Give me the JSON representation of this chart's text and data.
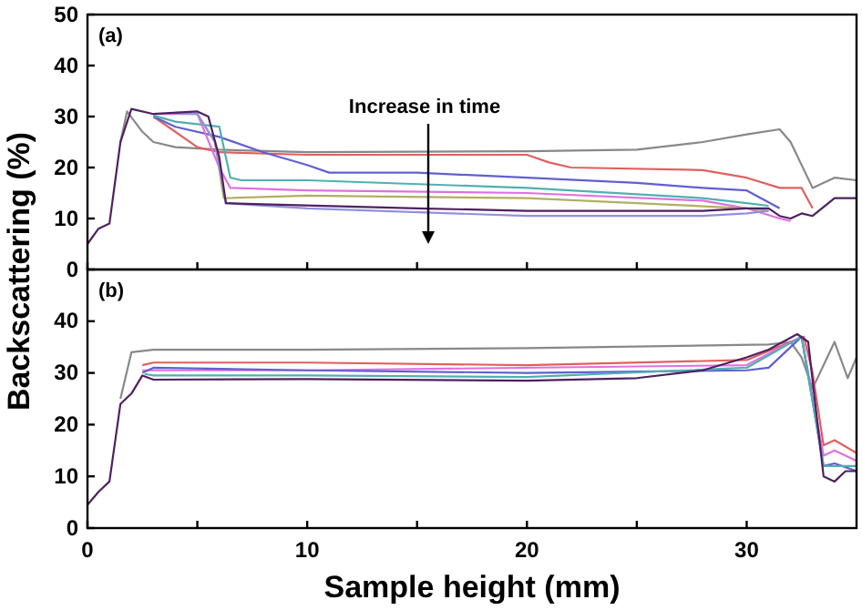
{
  "chart_data": [
    {
      "type": "line",
      "ylabel": "Backscattering (%)",
      "annotations": [
        "(a)",
        "Increase in time"
      ],
      "xlim": [
        0,
        35
      ],
      "xticks": [
        0,
        {
          "value": 5,
          "label": null
        },
        10,
        {
          "value": 15,
          "label": null
        },
        20,
        {
          "value": 25,
          "label": null
        },
        30
      ],
      "ylim": [
        0,
        50
      ],
      "yticks": [
        0,
        10,
        20,
        30,
        40,
        50
      ],
      "tick_labels": "y",
      "series": [
        {
          "color": "#888888",
          "x": [
            1.5,
            1.8,
            2.5,
            3,
            4,
            6,
            10,
            20,
            25,
            28,
            30,
            31.5,
            32,
            33,
            33.5,
            34,
            35
          ],
          "values": [
            25,
            31,
            27,
            25,
            24,
            23.5,
            23,
            23.2,
            23.5,
            25,
            26.5,
            27.5,
            25,
            16,
            17,
            18,
            17.5
          ]
        },
        {
          "color": "#e06060",
          "x": [
            3,
            5,
            6,
            10,
            15,
            20,
            21,
            22,
            28,
            30,
            31.5,
            32.5,
            33
          ],
          "values": [
            30,
            24,
            23,
            22.5,
            22.5,
            22.5,
            21,
            20,
            19.5,
            18,
            16,
            16,
            12
          ]
        },
        {
          "color": "#6060d0",
          "x": [
            3,
            4,
            6,
            8,
            10,
            11,
            15,
            20,
            25,
            28,
            30,
            31.5
          ],
          "values": [
            30,
            28,
            26,
            23,
            20.5,
            19,
            19,
            18,
            17,
            16,
            15.5,
            12
          ]
        },
        {
          "color": "#50b0b0",
          "x": [
            3,
            4,
            6,
            6.5,
            7,
            10,
            20,
            28,
            30,
            31
          ],
          "values": [
            30.2,
            29,
            28,
            18,
            17.5,
            17.5,
            16,
            14,
            13,
            12.5
          ]
        },
        {
          "color": "#e070e0",
          "x": [
            3,
            5,
            6,
            6.5,
            10,
            20,
            28,
            30,
            31.5,
            32
          ],
          "values": [
            30.5,
            30.5,
            20,
            16,
            15.5,
            15,
            13.5,
            12,
            10,
            9.5
          ]
        },
        {
          "color": "#b0b060",
          "x": [
            4,
            5,
            5.8,
            6.2,
            10,
            20,
            30,
            31
          ],
          "values": [
            30.8,
            30.5,
            25,
            14,
            14.5,
            14,
            12,
            11.5
          ]
        },
        {
          "color": "#9090e0",
          "x": [
            4,
            5,
            5.8,
            6.3,
            10,
            20,
            28,
            30,
            31
          ],
          "values": [
            30.6,
            30.5,
            25,
            13,
            12,
            10.5,
            10.5,
            11,
            11.5
          ]
        },
        {
          "color": "#502060",
          "x": [
            0,
            0.5,
            1,
            1.5,
            2,
            3,
            5,
            5.5,
            6,
            6.3,
            8,
            15,
            20,
            28,
            30,
            31,
            31.5,
            32,
            32.5,
            33,
            34,
            35
          ],
          "values": [
            5,
            8,
            9,
            25,
            31.5,
            30.5,
            31,
            30,
            22,
            13,
            12.8,
            12,
            11.5,
            11.5,
            12,
            12,
            10.5,
            10,
            11,
            10.5,
            14,
            14
          ]
        }
      ]
    },
    {
      "type": "line",
      "xlabel": "Sample height (mm)",
      "annotations": [
        "(b)"
      ],
      "xlim": [
        0,
        35
      ],
      "xticks": [
        0,
        {
          "value": 5,
          "label": null
        },
        10,
        {
          "value": 15,
          "label": null
        },
        20,
        {
          "value": 25,
          "label": null
        },
        30
      ],
      "ylim": [
        0,
        50
      ],
      "yticks": [
        0,
        10,
        20,
        30,
        40
      ],
      "series": [
        {
          "color": "#888888",
          "x": [
            1.5,
            2,
            3,
            10,
            20,
            31,
            32,
            32.5,
            33,
            34,
            34.6,
            35
          ],
          "values": [
            25,
            34,
            34.5,
            34.5,
            34.8,
            35.5,
            36,
            33,
            27,
            36,
            29,
            33
          ]
        },
        {
          "color": "#e06060",
          "x": [
            2.5,
            3,
            10,
            20,
            30,
            32,
            32.6,
            33,
            33.5,
            34,
            35
          ],
          "values": [
            31.5,
            32,
            32,
            31.5,
            32.5,
            36,
            37,
            30,
            16,
            17,
            14.5
          ]
        },
        {
          "color": "#e070e0",
          "x": [
            2.5,
            10,
            30,
            32.5,
            33.5,
            34,
            35
          ],
          "values": [
            30.5,
            30.5,
            31.5,
            37,
            14,
            15,
            13
          ]
        },
        {
          "color": "#6060d0",
          "x": [
            2.5,
            3,
            10,
            20,
            30,
            31,
            32.5,
            33.5,
            34,
            35
          ],
          "values": [
            30,
            31,
            30.5,
            30,
            30.5,
            31,
            37,
            12,
            12.5,
            11
          ]
        },
        {
          "color": "#50b0b0",
          "x": [
            2.6,
            3,
            10,
            20,
            30,
            32.5,
            33.5,
            35
          ],
          "values": [
            29.8,
            29.5,
            29.5,
            29.2,
            31,
            37,
            12,
            12
          ]
        },
        {
          "color": "#502060",
          "x": [
            0,
            0.5,
            1,
            1.5,
            2,
            2.5,
            3,
            10,
            20,
            25,
            28,
            30,
            31,
            32.3,
            32.8,
            33.5,
            34,
            34.5,
            35
          ],
          "values": [
            4.5,
            7,
            9,
            24,
            26,
            29.5,
            28.7,
            28.8,
            28.5,
            29,
            30.5,
            33,
            34.5,
            37.5,
            36,
            10,
            9,
            11,
            11
          ]
        }
      ]
    }
  ]
}
